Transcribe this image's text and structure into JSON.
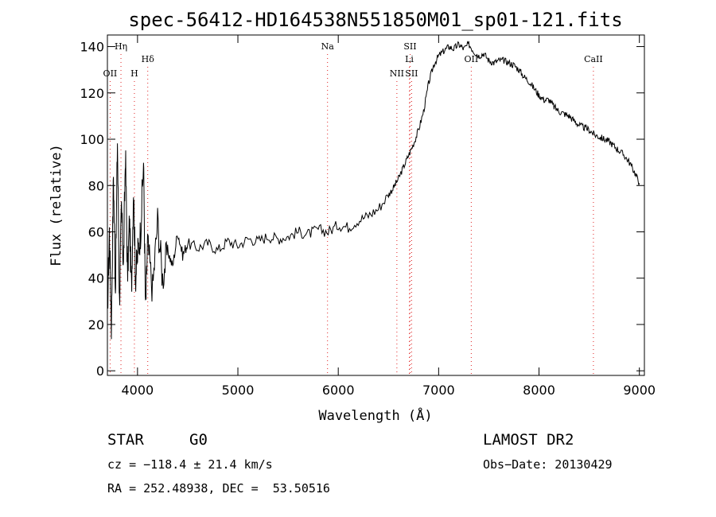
{
  "chart_data": {
    "type": "line",
    "title": "spec-56412-HD164538N551850M01_sp01-121.fits",
    "xlabel": "Wavelength (Å)",
    "ylabel": "Flux (relative)",
    "xlim": [
      3700,
      9050
    ],
    "ylim": [
      -2,
      145
    ],
    "xticks": [
      4000,
      5000,
      6000,
      7000,
      8000,
      9000
    ],
    "yticks": [
      0,
      20,
      40,
      60,
      80,
      100,
      120,
      140
    ],
    "grid": false,
    "series": [
      {
        "color": "#000000",
        "x": [
          3700,
          3720,
          3740,
          3760,
          3780,
          3800,
          3820,
          3840,
          3860,
          3880,
          3900,
          3920,
          3940,
          3960,
          3980,
          4000,
          4030,
          4060,
          4080,
          4100,
          4150,
          4200,
          4250,
          4300,
          4350,
          4400,
          4450,
          4500,
          4600,
          4700,
          4800,
          4900,
          5000,
          5100,
          5200,
          5300,
          5400,
          5500,
          5600,
          5700,
          5800,
          5900,
          6000,
          6100,
          6200,
          6300,
          6400,
          6500,
          6550,
          6600,
          6650,
          6700,
          6750,
          6800,
          6850,
          6900,
          6950,
          7000,
          7050,
          7100,
          7150,
          7200,
          7250,
          7300,
          7350,
          7400,
          7450,
          7500,
          7550,
          7600,
          7650,
          7700,
          7750,
          7800,
          7850,
          7900,
          7950,
          8000,
          8050,
          8100,
          8150,
          8200,
          8250,
          8300,
          8350,
          8400,
          8450,
          8500,
          8550,
          8600,
          8650,
          8700,
          8750,
          8800,
          8850,
          8900,
          8950,
          9000
        ],
        "y": [
          25,
          60,
          20,
          85,
          35,
          100,
          30,
          70,
          45,
          95,
          40,
          65,
          35,
          80,
          40,
          50,
          60,
          90,
          25,
          55,
          35,
          65,
          40,
          52,
          45,
          60,
          50,
          55,
          53,
          55,
          52,
          56,
          54,
          57,
          56,
          58,
          57,
          58,
          60,
          59,
          61,
          60,
          63,
          62,
          65,
          67,
          70,
          76,
          79,
          83,
          88,
          93,
          98,
          104,
          112,
          124,
          132,
          136,
          138,
          140,
          139,
          141,
          139,
          141,
          138,
          136,
          137,
          134,
          133,
          134,
          134,
          133,
          132,
          130,
          127,
          125,
          122,
          119,
          117,
          117,
          114,
          112,
          111,
          110,
          108,
          106,
          105,
          104,
          102,
          101,
          100,
          99,
          97,
          95,
          93,
          90,
          86,
          81
        ]
      }
    ],
    "spectral_lines": [
      {
        "name": "OII",
        "wave": 3727,
        "row": 2
      },
      {
        "name": "Hη",
        "wave": 3835,
        "row": 0
      },
      {
        "name": "H",
        "wave": 3969,
        "row": 2
      },
      {
        "name": "Hδ",
        "wave": 4102,
        "row": 1
      },
      {
        "name": "Na",
        "wave": 5893,
        "row": 0
      },
      {
        "name": "NII",
        "wave": 6584,
        "row": 2
      },
      {
        "name": "Li",
        "wave": 6708,
        "row": 1
      },
      {
        "name": "SII",
        "wave": 6716,
        "row": 0
      },
      {
        "name": "SII",
        "wave": 6731,
        "row": 2
      },
      {
        "name": "OII",
        "wave": 7325,
        "row": 1
      },
      {
        "name": "CaII",
        "wave": 8542,
        "row": 1
      }
    ]
  },
  "info": {
    "object_class": "STAR",
    "subclass": "G0",
    "survey": "LAMOST DR2",
    "cz": "cz = −118.4 ± 21.4 km/s",
    "obs_date": "Obs−Date: 20130429",
    "radec": "RA = 252.48938, DEC =  53.50516"
  }
}
